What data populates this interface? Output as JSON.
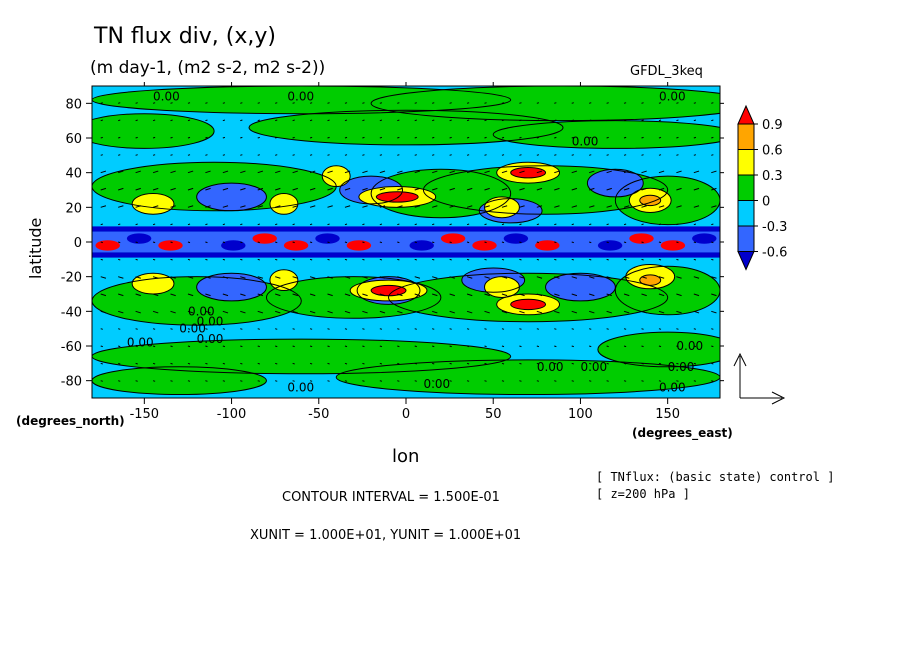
{
  "chart_data": {
    "type": "heatmap",
    "title": "TN flux div, (x,y)",
    "subtitle": "(m day-1, (m2 s-2, m2 s-2))",
    "model_label": "GFDL_3keq",
    "xlabel": "lon",
    "ylabel": "latitude",
    "x_unit_label": "(degrees_east)",
    "y_unit_label": "(degrees_north)",
    "xlim": [
      -180,
      180
    ],
    "ylim": [
      -90,
      90
    ],
    "x_ticks": [
      "-150",
      "-100",
      "-50",
      "0",
      "50",
      "100",
      "150"
    ],
    "y_ticks": [
      "80",
      "60",
      "40",
      "20",
      "0",
      "-20",
      "-40",
      "-60",
      "-80"
    ],
    "colorbar": {
      "labels": [
        "0.9",
        "0.6",
        "0.3",
        "0",
        "-0.3",
        "-0.6"
      ],
      "colors": [
        "#ff0000",
        "#ffa500",
        "#ffff00",
        "#00cc00",
        "#00ccff",
        "#3366ff",
        "#0000cc"
      ]
    },
    "contour_labels": [
      "0.00",
      "0.00",
      "0.00",
      "0.00",
      "0.00",
      "0.00",
      "0.00",
      "0.00",
      "0.00",
      "0.00",
      "0.00",
      "0.00",
      "0.00",
      "0.00",
      "0.00",
      "0.00"
    ],
    "info_lines": [
      "[ TNflux: (basic state) control ]",
      "[ z=200 hPa ]"
    ],
    "contour_interval": "CONTOUR INTERVAL = 1.500E-01",
    "vector_units": "XUNIT = 1.000E+01, YUNIT = 1.000E+01",
    "grid": false
  },
  "colors": {
    "background": "#ffffff",
    "red": "#ff0000",
    "orange": "#ffa500",
    "yellow": "#ffff00",
    "green": "#00cc00",
    "cyan": "#00ccff",
    "blue": "#3366ff",
    "dark_blue": "#0000cc"
  }
}
